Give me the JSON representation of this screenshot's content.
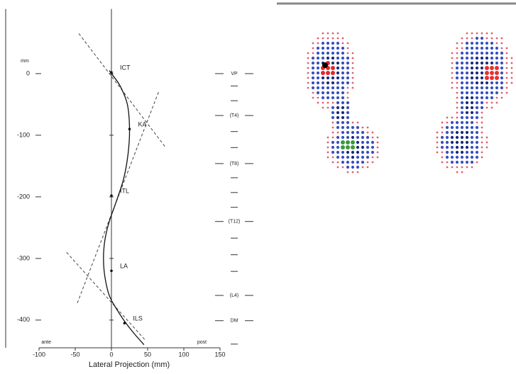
{
  "chart_data": {
    "type": "profile",
    "xlabel": "Lateral Projection (mm)",
    "ylabel": "mm",
    "left_note": "ante",
    "right_note": "post",
    "xlim": [
      -100,
      150
    ],
    "ylim": [
      -445,
      105
    ],
    "xticks": [
      -100,
      -50,
      0,
      50,
      100,
      150
    ],
    "yticks": [
      0,
      -100,
      -200,
      -300,
      -400
    ],
    "profile": {
      "x": [
        -3,
        0,
        12,
        22,
        25,
        23,
        17,
        6,
        -3,
        -9,
        -11,
        -9,
        -3,
        6,
        17,
        30,
        45
      ],
      "y": [
        5,
        0,
        -20,
        -50,
        -90,
        -130,
        -170,
        -210,
        -240,
        -270,
        -300,
        -330,
        -360,
        -380,
        -400,
        -420,
        -440
      ]
    },
    "guides": [
      {
        "x": [
          -45,
          75
        ],
        "y": [
          65,
          -120
        ]
      },
      {
        "x": [
          65,
          -48
        ],
        "y": [
          -30,
          -375
        ]
      },
      {
        "x": [
          -62,
          47
        ],
        "y": [
          -290,
          -433
        ]
      }
    ],
    "landmarks": [
      {
        "label": "ICT",
        "x": 0,
        "y": 2
      },
      {
        "label": "KA",
        "x": 25,
        "y": -90
      },
      {
        "label": "ITL",
        "x": 0,
        "y": -198
      },
      {
        "label": "LA",
        "x": 0,
        "y": -320
      },
      {
        "label": "ILS",
        "x": 18,
        "y": -405
      }
    ],
    "vertebrae": [
      {
        "label": "VP",
        "y": 0
      },
      {
        "label": "(T4)",
        "y": -68
      },
      {
        "label": "(T8)",
        "y": -146
      },
      {
        "label": "(T12)",
        "y": -240
      },
      {
        "label": "(L4)",
        "y": -360
      },
      {
        "label": "DM",
        "y": -401
      }
    ],
    "minor_marks": [
      -20,
      -44,
      -94,
      -120,
      -169,
      -193,
      -217,
      -267,
      -294,
      -321,
      -439
    ]
  }
}
